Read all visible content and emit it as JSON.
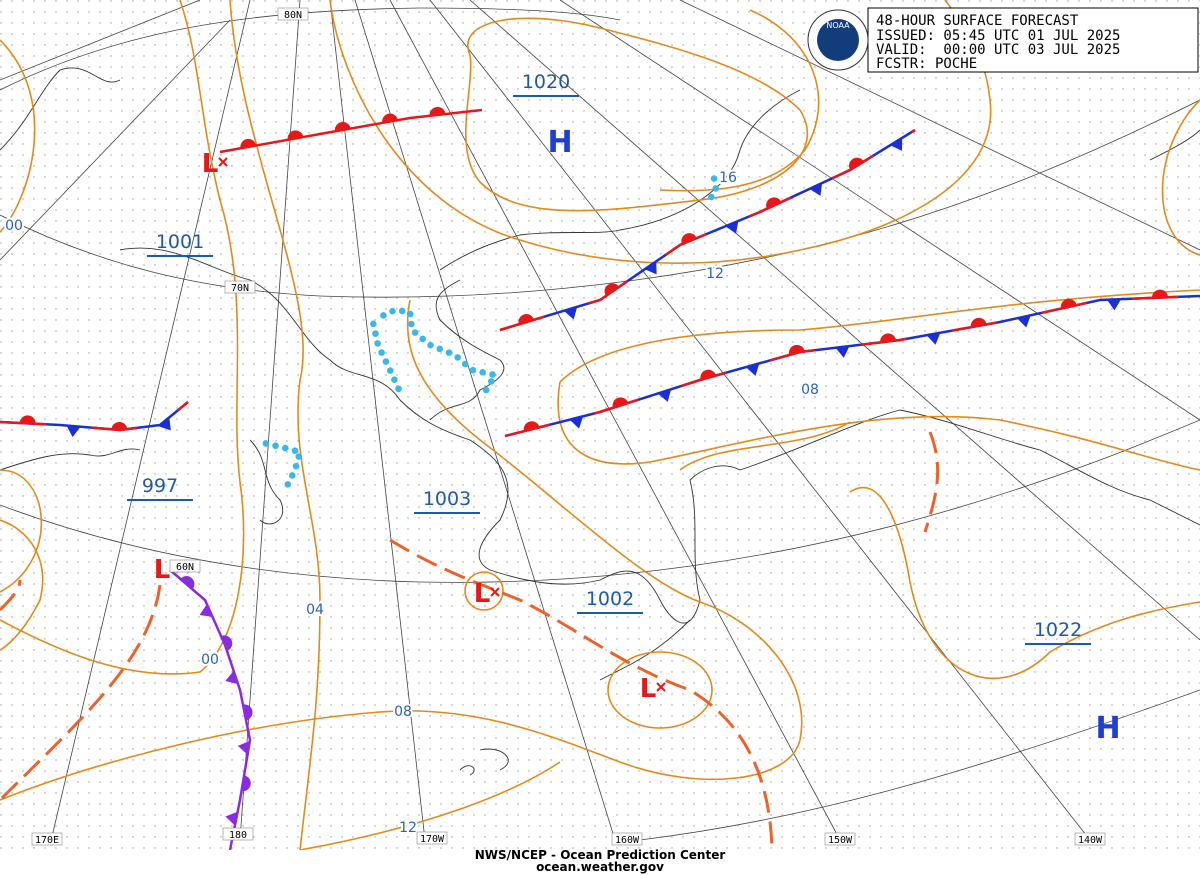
{
  "header": {
    "lines": [
      "48-HOUR SURFACE FORECAST",
      "ISSUED: 05:45 UTC 01 JUL 2025",
      "VALID:  00:00 UTC 03 JUL 2025",
      "FCSTR: POCHE"
    ],
    "logo": "NOAA"
  },
  "pressure_labels": [
    "1020",
    "1001",
    "997",
    "1003",
    "1002",
    "1022"
  ],
  "symbols": [
    "H",
    "L",
    "L",
    "L",
    "L",
    "H"
  ],
  "isobar_labels": [
    "00",
    "16",
    "12",
    "08",
    "04",
    "00",
    "08",
    "12"
  ],
  "grid_labels": [
    "80N",
    "70N",
    "60N",
    "170E",
    "180",
    "170W",
    "160W",
    "150W",
    "140W"
  ],
  "footer": {
    "agency": "NWS/NCEP - Ocean Prediction Center",
    "url": "ocean.weather.gov"
  }
}
